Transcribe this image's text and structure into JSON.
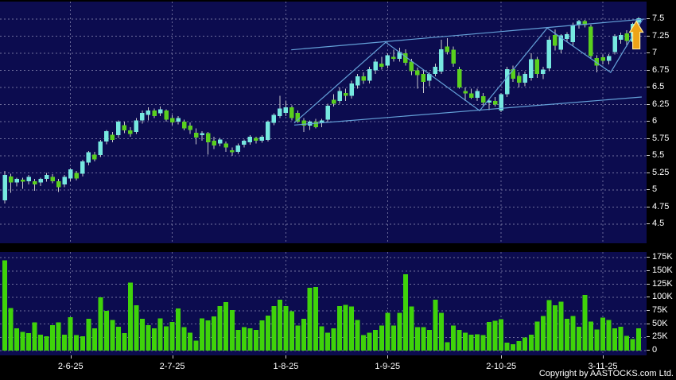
{
  "page": {
    "copyright": "Copyright by AASTOCKS.com Ltd."
  },
  "chart_data": {
    "type": "candlestick_with_volume",
    "price_axis": {
      "min": 4.5,
      "max": 7.5,
      "tick_step": 0.25,
      "tick_labels": [
        "7.5",
        "7.25",
        "7",
        "6.75",
        "6.5",
        "6.25",
        "6",
        "5.75",
        "5.5",
        "5.25",
        "5",
        "4.75",
        "4.5"
      ]
    },
    "volume_axis": {
      "min_k": 0,
      "max_k": 175,
      "tick_step_k": 25,
      "tick_labels": [
        "175K",
        "150K",
        "125K",
        "100K",
        "75K",
        "50K",
        "25K",
        "0"
      ]
    },
    "date_ticks": [
      {
        "i": 11,
        "label": "2-6-25"
      },
      {
        "i": 28,
        "label": "2-7-25"
      },
      {
        "i": 47,
        "label": "1-8-25"
      },
      {
        "i": 64,
        "label": "1-9-25"
      },
      {
        "i": 83,
        "label": "2-10-25"
      },
      {
        "i": 100,
        "label": "3-11-25"
      }
    ],
    "candles": [
      [
        4.85,
        5.28,
        4.8,
        5.22
      ],
      [
        5.2,
        5.24,
        4.96,
        5.11
      ],
      [
        5.11,
        5.18,
        5.05,
        5.16
      ],
      [
        5.15,
        5.18,
        5.02,
        5.12
      ],
      [
        5.13,
        5.22,
        5.08,
        5.19
      ],
      [
        5.13,
        5.16,
        4.99,
        5.08
      ],
      [
        5.11,
        5.18,
        5.06,
        5.16
      ],
      [
        5.16,
        5.25,
        5.12,
        5.22
      ],
      [
        5.19,
        5.23,
        5.1,
        5.13
      ],
      [
        5.13,
        5.16,
        4.97,
        5.04
      ],
      [
        5.08,
        5.22,
        5.04,
        5.19
      ],
      [
        5.17,
        5.32,
        5.13,
        5.3
      ],
      [
        5.25,
        5.28,
        5.14,
        5.17
      ],
      [
        5.24,
        5.44,
        5.2,
        5.42
      ],
      [
        5.4,
        5.57,
        5.36,
        5.55
      ],
      [
        5.52,
        5.56,
        5.42,
        5.45
      ],
      [
        5.51,
        5.73,
        5.48,
        5.71
      ],
      [
        5.71,
        5.88,
        5.67,
        5.86
      ],
      [
        5.81,
        5.85,
        5.7,
        5.73
      ],
      [
        5.8,
        6.02,
        5.76,
        6.0
      ],
      [
        5.95,
        6.0,
        5.83,
        5.87
      ],
      [
        5.87,
        5.92,
        5.78,
        5.82
      ],
      [
        5.85,
        6.05,
        5.82,
        6.02
      ],
      [
        6.02,
        6.16,
        5.97,
        6.13
      ],
      [
        6.1,
        6.21,
        6.02,
        6.16
      ],
      [
        6.16,
        6.19,
        6.05,
        6.08
      ],
      [
        6.12,
        6.22,
        6.08,
        6.18
      ],
      [
        6.16,
        6.18,
        6.0,
        6.03
      ],
      [
        6.05,
        6.1,
        5.95,
        5.99
      ],
      [
        6.0,
        6.08,
        5.96,
        6.05
      ],
      [
        6.0,
        6.03,
        5.87,
        5.9
      ],
      [
        5.94,
        5.99,
        5.82,
        5.88
      ],
      [
        5.84,
        5.9,
        5.67,
        5.77
      ],
      [
        5.8,
        5.86,
        5.72,
        5.83
      ],
      [
        5.83,
        5.85,
        5.52,
        5.7
      ],
      [
        5.72,
        5.78,
        5.6,
        5.65
      ],
      [
        5.68,
        5.76,
        5.64,
        5.74
      ],
      [
        5.68,
        5.71,
        5.56,
        5.62
      ],
      [
        5.58,
        5.62,
        5.5,
        5.55
      ],
      [
        5.56,
        5.68,
        5.53,
        5.65
      ],
      [
        5.66,
        5.74,
        5.62,
        5.72
      ],
      [
        5.7,
        5.8,
        5.66,
        5.78
      ],
      [
        5.76,
        5.78,
        5.68,
        5.72
      ],
      [
        5.72,
        5.8,
        5.69,
        5.78
      ],
      [
        5.73,
        6.02,
        5.71,
        6.0
      ],
      [
        5.98,
        6.12,
        5.95,
        6.1
      ],
      [
        6.08,
        6.38,
        6.05,
        6.19
      ],
      [
        6.13,
        6.31,
        6.08,
        6.21
      ],
      [
        6.21,
        6.24,
        6.02,
        6.05
      ],
      [
        6.13,
        6.16,
        5.98,
        6.0
      ],
      [
        6.02,
        6.05,
        5.85,
        5.94
      ],
      [
        5.94,
        6.02,
        5.88,
        6.0
      ],
      [
        6.0,
        6.04,
        5.9,
        5.92
      ],
      [
        5.98,
        6.04,
        5.92,
        6.02
      ],
      [
        6.03,
        6.26,
        6.0,
        6.23
      ],
      [
        6.32,
        6.4,
        6.22,
        6.26
      ],
      [
        6.3,
        6.5,
        6.26,
        6.45
      ],
      [
        6.42,
        6.48,
        6.3,
        6.38
      ],
      [
        6.38,
        6.6,
        6.34,
        6.56
      ],
      [
        6.53,
        6.7,
        6.48,
        6.66
      ],
      [
        6.66,
        6.72,
        6.55,
        6.6
      ],
      [
        6.6,
        6.8,
        6.56,
        6.77
      ],
      [
        6.75,
        6.92,
        6.7,
        6.88
      ],
      [
        6.85,
        6.95,
        6.76,
        6.8
      ],
      [
        6.82,
        7.0,
        6.78,
        6.97
      ],
      [
        6.95,
        7.05,
        6.88,
        6.92
      ],
      [
        6.92,
        7.08,
        6.88,
        7.02
      ],
      [
        7.0,
        7.06,
        6.82,
        6.86
      ],
      [
        6.88,
        6.92,
        6.68,
        6.74
      ],
      [
        6.75,
        6.79,
        6.48,
        6.68
      ],
      [
        6.7,
        6.76,
        6.42,
        6.58
      ],
      [
        6.6,
        6.72,
        6.52,
        6.7
      ],
      [
        6.7,
        6.85,
        6.66,
        6.8
      ],
      [
        6.73,
        7.2,
        6.7,
        7.06
      ],
      [
        7.1,
        7.22,
        6.98,
        7.02
      ],
      [
        7.05,
        7.1,
        6.8,
        6.85
      ],
      [
        6.77,
        6.8,
        6.48,
        6.5
      ],
      [
        6.45,
        6.5,
        6.3,
        6.41
      ],
      [
        6.41,
        6.48,
        6.33,
        6.35
      ],
      [
        6.35,
        6.48,
        6.3,
        6.45
      ],
      [
        6.37,
        6.42,
        6.24,
        6.28
      ],
      [
        6.28,
        6.34,
        6.17,
        6.31
      ],
      [
        6.3,
        6.36,
        6.22,
        6.25
      ],
      [
        6.16,
        6.42,
        6.14,
        6.4
      ],
      [
        6.4,
        6.8,
        6.36,
        6.77
      ],
      [
        6.77,
        6.82,
        6.58,
        6.63
      ],
      [
        6.67,
        6.72,
        6.5,
        6.57
      ],
      [
        6.57,
        6.73,
        6.52,
        6.7
      ],
      [
        6.64,
        7.0,
        6.6,
        6.91
      ],
      [
        6.91,
        6.95,
        6.64,
        6.7
      ],
      [
        6.7,
        6.8,
        6.62,
        6.76
      ],
      [
        6.78,
        7.24,
        6.74,
        7.2
      ],
      [
        7.27,
        7.35,
        7.04,
        7.11
      ],
      [
        7.05,
        7.28,
        7.0,
        7.26
      ],
      [
        7.21,
        7.31,
        7.16,
        7.28
      ],
      [
        7.16,
        7.45,
        7.1,
        7.41
      ],
      [
        7.42,
        7.49,
        7.36,
        7.47
      ],
      [
        7.47,
        7.49,
        7.38,
        7.41
      ],
      [
        7.39,
        7.42,
        6.93,
        6.96
      ],
      [
        6.93,
        6.97,
        6.72,
        6.82
      ],
      [
        6.94,
        6.98,
        6.84,
        6.89
      ],
      [
        6.89,
        6.99,
        6.84,
        6.96
      ],
      [
        7.02,
        7.28,
        6.98,
        7.25
      ],
      [
        7.2,
        7.3,
        7.14,
        7.27
      ],
      [
        7.29,
        7.34,
        7.1,
        7.18
      ],
      [
        7.17,
        7.45,
        7.12,
        7.43
      ],
      [
        7.45,
        7.53,
        7.4,
        7.51
      ]
    ],
    "volumes_k": [
      170,
      80,
      42,
      35,
      33,
      53,
      30,
      27,
      48,
      53,
      30,
      63,
      29,
      27,
      60,
      42,
      100,
      75,
      58,
      45,
      33,
      128,
      85,
      60,
      48,
      42,
      61,
      46,
      54,
      79,
      44,
      34,
      19,
      61,
      57,
      64,
      84,
      91,
      76,
      39,
      44,
      42,
      39,
      57,
      66,
      84,
      96,
      84,
      74,
      47,
      60,
      118,
      120,
      46,
      34,
      42,
      84,
      86,
      83,
      58,
      29,
      34,
      39,
      47,
      71,
      47,
      71,
      144,
      83,
      44,
      44,
      39,
      96,
      71,
      16,
      47,
      39,
      34,
      30,
      31,
      29,
      54,
      56,
      59,
      15,
      12,
      18,
      25,
      30,
      55,
      65,
      95,
      85,
      92,
      60,
      65,
      45,
      105,
      55,
      40,
      62,
      58,
      42,
      45,
      28,
      22,
      42
    ],
    "overlays": {
      "zigzag": [
        [
          48.4,
          5.98
        ],
        [
          63.7,
          7.16
        ],
        [
          79.4,
          6.16
        ],
        [
          90.7,
          7.37
        ],
        [
          101.3,
          6.72
        ],
        [
          106.6,
          7.49
        ]
      ],
      "channel_upper": [
        [
          47.9,
          7.05
        ],
        [
          106.9,
          7.5
        ]
      ],
      "channel_lower": [
        [
          48.4,
          5.95
        ],
        [
          106.5,
          6.36
        ]
      ],
      "arrow_marker": {
        "i": 105.6,
        "price_tip": 7.47,
        "direction": "up"
      }
    },
    "colors": {
      "background": "#000000",
      "plot_bg": "#0c0c4f",
      "grid": "#9090b8",
      "up_candle": "#76e8e0",
      "down_candle": "#5ad01e",
      "wick": "#c8c8cc",
      "volume_bar": "#3fd30a",
      "trendline": "#64a0d8",
      "arrow_fill": "#eda418",
      "arrow_stroke": "#ffec9e",
      "axis_text": "#ffffff"
    }
  }
}
